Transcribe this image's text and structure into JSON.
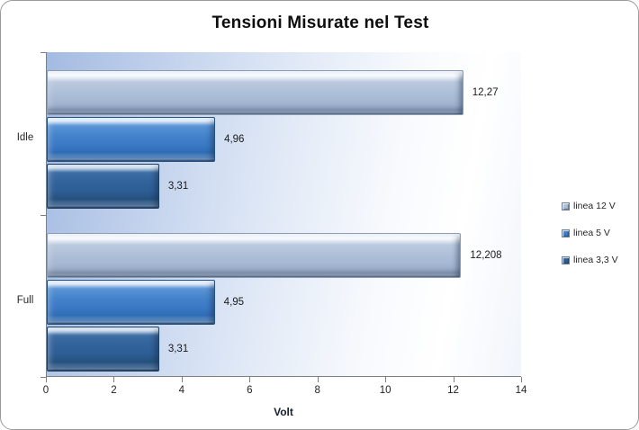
{
  "window": {
    "background": "#ffffff",
    "border_color": "#9b9b9b"
  },
  "chart_data": {
    "type": "bar",
    "orientation": "horizontal",
    "title": "Tensioni Misurate nel Test",
    "xlabel": "Volt",
    "categories": [
      "Idle",
      "Full"
    ],
    "series": [
      {
        "name": "linea 12 V",
        "color": "#aebfd8",
        "values": [
          12.27,
          12.208
        ],
        "labels": [
          "12,27",
          "12,208"
        ]
      },
      {
        "name": "linea 5 V",
        "color": "#3d7ac6",
        "values": [
          4.96,
          4.95
        ],
        "labels": [
          "4,96",
          "4,95"
        ]
      },
      {
        "name": "linea 3,3 V",
        "color": "#2d5e95",
        "values": [
          3.31,
          3.31
        ],
        "labels": [
          "3,31",
          "3,31"
        ]
      }
    ],
    "xlim": [
      0,
      14
    ],
    "xticks": [
      0,
      2,
      4,
      6,
      8,
      10,
      12,
      14
    ],
    "xtick_labels": [
      "0",
      "2",
      "4",
      "6",
      "8",
      "10",
      "12",
      "14"
    ],
    "grid": false,
    "legend_position": "right",
    "value_labels_shown": true,
    "plot_bg_gradient": [
      "#a3bbe1",
      "#ffffff"
    ]
  }
}
